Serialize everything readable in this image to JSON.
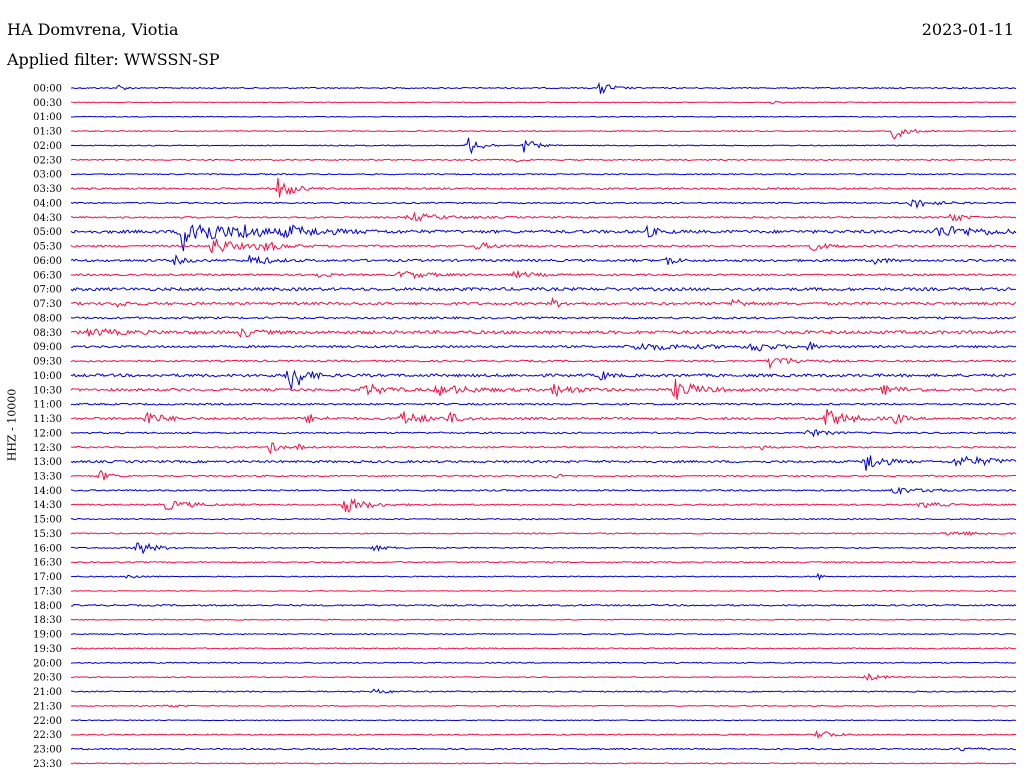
{
  "header": {
    "station": "HA Domvrena, Viotia",
    "date": "2023-01-11",
    "filter": "Applied filter: WWSSN-SP"
  },
  "chart_data": {
    "type": "line",
    "ylabel": "HHZ - 10000",
    "xlabel": "",
    "colors": {
      "even": "#0000cc",
      "odd": "#ee1144"
    },
    "rows": [
      "00:00",
      "00:30",
      "01:00",
      "01:30",
      "02:00",
      "02:30",
      "03:00",
      "03:30",
      "04:00",
      "04:30",
      "05:00",
      "05:30",
      "06:00",
      "06:30",
      "07:00",
      "07:30",
      "08:00",
      "08:30",
      "09:00",
      "09:30",
      "10:00",
      "10:30",
      "11:00",
      "11:30",
      "12:00",
      "12:30",
      "13:00",
      "13:30",
      "14:00",
      "14:30",
      "15:00",
      "15:30",
      "16:00",
      "16:30",
      "17:00",
      "17:30",
      "18:00",
      "18:30",
      "19:00",
      "19:30",
      "20:00",
      "20:30",
      "21:00",
      "21:30",
      "22:00",
      "22:30",
      "23:00",
      "23:30"
    ],
    "noise_level": [
      0.6,
      0.4,
      0.4,
      0.5,
      0.5,
      0.6,
      0.6,
      0.9,
      0.7,
      0.8,
      1.5,
      1.0,
      1.2,
      0.9,
      1.5,
      1.3,
      1.0,
      1.6,
      1.1,
      0.9,
      1.4,
      1.3,
      0.9,
      1.2,
      0.8,
      0.8,
      1.1,
      0.7,
      0.8,
      0.7,
      0.6,
      0.6,
      0.6,
      0.7,
      0.5,
      0.4,
      0.8,
      0.5,
      0.5,
      0.6,
      0.6,
      0.5,
      0.6,
      0.5,
      0.4,
      0.6,
      0.7,
      0.5
    ],
    "events": [
      {
        "row": 0,
        "t": 0.05,
        "amp": 4,
        "dur": 0.006
      },
      {
        "row": 0,
        "t": 0.56,
        "amp": 8,
        "dur": 0.01
      },
      {
        "row": 1,
        "t": 0.74,
        "amp": 2,
        "dur": 0.01
      },
      {
        "row": 3,
        "t": 0.87,
        "amp": 9,
        "dur": 0.012
      },
      {
        "row": 4,
        "t": 0.42,
        "amp": 10,
        "dur": 0.012
      },
      {
        "row": 4,
        "t": 0.48,
        "amp": 8,
        "dur": 0.01
      },
      {
        "row": 5,
        "t": 0.47,
        "amp": 3,
        "dur": 0.006
      },
      {
        "row": 7,
        "t": 0.22,
        "amp": 13,
        "dur": 0.012
      },
      {
        "row": 8,
        "t": 0.89,
        "amp": 5,
        "dur": 0.02
      },
      {
        "row": 9,
        "t": 0.36,
        "amp": 4,
        "dur": 0.03
      },
      {
        "row": 9,
        "t": 0.93,
        "amp": 7,
        "dur": 0.01
      },
      {
        "row": 10,
        "t": 0.12,
        "amp": 20,
        "dur": 0.03
      },
      {
        "row": 10,
        "t": 0.18,
        "amp": 6,
        "dur": 0.02
      },
      {
        "row": 10,
        "t": 0.23,
        "amp": 5,
        "dur": 0.04
      },
      {
        "row": 10,
        "t": 0.61,
        "amp": 5,
        "dur": 0.01
      },
      {
        "row": 10,
        "t": 0.92,
        "amp": 5,
        "dur": 0.05
      },
      {
        "row": 11,
        "t": 0.15,
        "amp": 9,
        "dur": 0.02
      },
      {
        "row": 11,
        "t": 0.2,
        "amp": 5,
        "dur": 0.02
      },
      {
        "row": 11,
        "t": 0.43,
        "amp": 3,
        "dur": 0.02
      },
      {
        "row": 11,
        "t": 0.78,
        "amp": 5,
        "dur": 0.015
      },
      {
        "row": 12,
        "t": 0.11,
        "amp": 4,
        "dur": 0.01
      },
      {
        "row": 12,
        "t": 0.19,
        "amp": 6,
        "dur": 0.015
      },
      {
        "row": 12,
        "t": 0.63,
        "amp": 9,
        "dur": 0.006
      },
      {
        "row": 12,
        "t": 0.85,
        "amp": 4,
        "dur": 0.01
      },
      {
        "row": 13,
        "t": 0.26,
        "amp": 3,
        "dur": 0.01
      },
      {
        "row": 13,
        "t": 0.35,
        "amp": 4,
        "dur": 0.025
      },
      {
        "row": 13,
        "t": 0.47,
        "amp": 3,
        "dur": 0.02
      },
      {
        "row": 15,
        "t": 0.05,
        "amp": 4,
        "dur": 0.008
      },
      {
        "row": 15,
        "t": 0.51,
        "amp": 4,
        "dur": 0.01
      },
      {
        "row": 15,
        "t": 0.7,
        "amp": 6,
        "dur": 0.01
      },
      {
        "row": 17,
        "t": 0.02,
        "amp": 3,
        "dur": 0.03
      },
      {
        "row": 17,
        "t": 0.18,
        "amp": 5,
        "dur": 0.012
      },
      {
        "row": 18,
        "t": 0.6,
        "amp": 3,
        "dur": 0.06
      },
      {
        "row": 18,
        "t": 0.72,
        "amp": 6,
        "dur": 0.015
      },
      {
        "row": 18,
        "t": 0.78,
        "amp": 5,
        "dur": 0.006
      },
      {
        "row": 19,
        "t": 0.74,
        "amp": 6,
        "dur": 0.02
      },
      {
        "row": 20,
        "t": 0.23,
        "amp": 22,
        "dur": 0.012
      },
      {
        "row": 20,
        "t": 0.56,
        "amp": 5,
        "dur": 0.008
      },
      {
        "row": 21,
        "t": 0.31,
        "amp": 6,
        "dur": 0.02
      },
      {
        "row": 21,
        "t": 0.39,
        "amp": 5,
        "dur": 0.03
      },
      {
        "row": 21,
        "t": 0.51,
        "amp": 6,
        "dur": 0.02
      },
      {
        "row": 21,
        "t": 0.64,
        "amp": 10,
        "dur": 0.02
      },
      {
        "row": 21,
        "t": 0.86,
        "amp": 4,
        "dur": 0.02
      },
      {
        "row": 23,
        "t": 0.08,
        "amp": 7,
        "dur": 0.015
      },
      {
        "row": 23,
        "t": 0.25,
        "amp": 5,
        "dur": 0.01
      },
      {
        "row": 23,
        "t": 0.35,
        "amp": 7,
        "dur": 0.02
      },
      {
        "row": 23,
        "t": 0.4,
        "amp": 5,
        "dur": 0.01
      },
      {
        "row": 23,
        "t": 0.8,
        "amp": 9,
        "dur": 0.02
      },
      {
        "row": 23,
        "t": 0.87,
        "amp": 7,
        "dur": 0.008
      },
      {
        "row": 24,
        "t": 0.78,
        "amp": 4,
        "dur": 0.015
      },
      {
        "row": 25,
        "t": 0.21,
        "amp": 7,
        "dur": 0.008
      },
      {
        "row": 25,
        "t": 0.24,
        "amp": 3,
        "dur": 0.006
      },
      {
        "row": 25,
        "t": 0.73,
        "amp": 3,
        "dur": 0.006
      },
      {
        "row": 26,
        "t": 0.84,
        "amp": 11,
        "dur": 0.015
      },
      {
        "row": 26,
        "t": 0.94,
        "amp": 5,
        "dur": 0.04
      },
      {
        "row": 27,
        "t": 0.03,
        "amp": 6,
        "dur": 0.01
      },
      {
        "row": 27,
        "t": 0.51,
        "amp": 4,
        "dur": 0.006
      },
      {
        "row": 28,
        "t": 0.87,
        "amp": 5,
        "dur": 0.015
      },
      {
        "row": 28,
        "t": 0.91,
        "amp": 4,
        "dur": 0.006
      },
      {
        "row": 29,
        "t": 0.1,
        "amp": 5,
        "dur": 0.025
      },
      {
        "row": 29,
        "t": 0.29,
        "amp": 8,
        "dur": 0.02
      },
      {
        "row": 29,
        "t": 0.9,
        "amp": 3,
        "dur": 0.02
      },
      {
        "row": 31,
        "t": 0.93,
        "amp": 2,
        "dur": 0.04
      },
      {
        "row": 32,
        "t": 0.07,
        "amp": 8,
        "dur": 0.015
      },
      {
        "row": 32,
        "t": 0.32,
        "amp": 3,
        "dur": 0.012
      },
      {
        "row": 34,
        "t": 0.06,
        "amp": 3,
        "dur": 0.01
      },
      {
        "row": 34,
        "t": 0.79,
        "amp": 4,
        "dur": 0.004
      },
      {
        "row": 41,
        "t": 0.84,
        "amp": 4,
        "dur": 0.015
      },
      {
        "row": 42,
        "t": 0.32,
        "amp": 3,
        "dur": 0.012
      },
      {
        "row": 43,
        "t": 0.1,
        "amp": 2,
        "dur": 0.01
      },
      {
        "row": 45,
        "t": 0.79,
        "amp": 7,
        "dur": 0.012
      },
      {
        "row": 46,
        "t": 0.94,
        "amp": 2,
        "dur": 0.02
      }
    ]
  }
}
